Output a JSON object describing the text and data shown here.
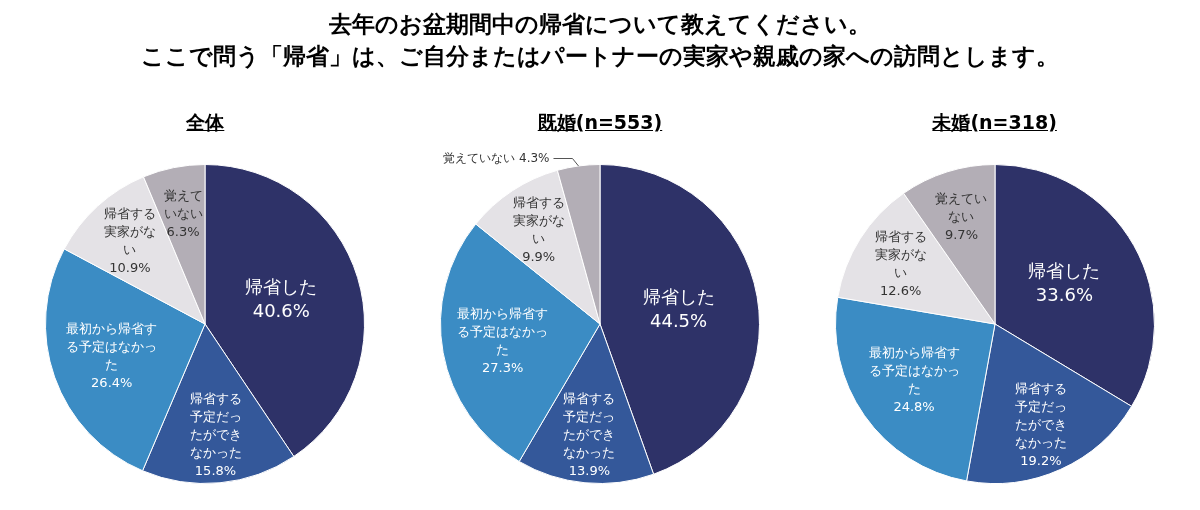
{
  "chart_data": [
    {
      "type": "other",
      "title": "去年のお盆期間中の帰省について教えてください。",
      "subtitle": "ここで問う「帰省」は、ご自分またはパートナーの実家や親戚の家への訪問とします。"
    },
    {
      "type": "pie",
      "title": "全体",
      "categories": [
        "帰省した",
        "帰省する予定だったができなかった",
        "最初から帰省する予定はなかった",
        "帰省する実家がない",
        "覚えていない"
      ],
      "values": [
        40.6,
        15.8,
        26.4,
        10.9,
        6.3
      ],
      "value_labels": [
        "40.6%",
        "15.8%",
        "26.4%",
        "10.9%",
        "6.3%"
      ],
      "colors": [
        "#2e3268",
        "#34589a",
        "#3b8cc4",
        "#e4e2e6",
        "#b3aeb6"
      ]
    },
    {
      "type": "pie",
      "title": "既婚(n=553)",
      "categories": [
        "帰省した",
        "帰省する予定だったができなかった",
        "最初から帰省する予定はなかった",
        "帰省する実家がない",
        "覚えていない"
      ],
      "values": [
        44.5,
        13.9,
        27.3,
        9.9,
        4.3
      ],
      "value_labels": [
        "44.5%",
        "13.9%",
        "27.3%",
        "9.9%",
        "4.3%"
      ],
      "colors": [
        "#2e3268",
        "#34589a",
        "#3b8cc4",
        "#e4e2e6",
        "#b3aeb6"
      ]
    },
    {
      "type": "pie",
      "title": "未婚(n=318)",
      "categories": [
        "帰省した",
        "帰省する予定だったができなかった",
        "最初から帰省する予定はなかった",
        "帰省する実家がない",
        "覚えていない"
      ],
      "values": [
        33.6,
        19.2,
        24.8,
        12.6,
        9.7
      ],
      "value_labels": [
        "33.6%",
        "19.2%",
        "24.8%",
        "12.6%",
        "9.7%"
      ],
      "colors": [
        "#2e3268",
        "#34589a",
        "#3b8cc4",
        "#e4e2e6",
        "#b3aeb6"
      ]
    }
  ]
}
